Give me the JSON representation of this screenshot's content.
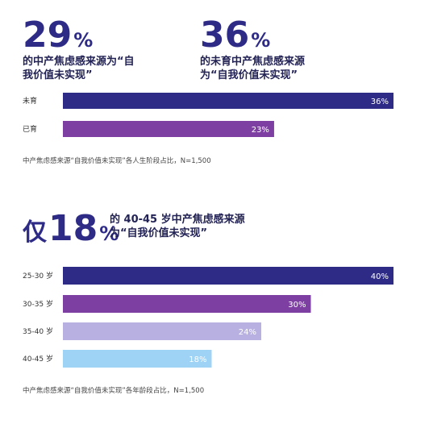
{
  "stat1": {
    "value": "29",
    "unit": "%",
    "caption_lines": [
      "的中产焦虑感来源为“自",
      "我价值未实现”"
    ]
  },
  "stat2": {
    "value": "36",
    "unit": "%",
    "caption_lines": [
      "的未育中产焦虑感来源",
      "为“自我价值未实现”"
    ]
  },
  "stat3": {
    "prefix": "仅",
    "value": "18",
    "unit": "%",
    "caption_lines": [
      "的 40-45 岁中产焦虑感来源",
      "为“自我价值未实现”"
    ]
  },
  "chart_data": [
    {
      "type": "bar",
      "orientation": "horizontal",
      "categories": [
        "未育",
        "已育"
      ],
      "values": [
        36,
        23
      ],
      "value_labels": [
        "36%",
        "23%"
      ],
      "colors": [
        "#2e2b86",
        "#7e3fa3"
      ],
      "xlim": [
        0,
        36
      ],
      "note": "中产焦虑感来源“自我价值未实现”各人生阶段占比，N=1,500"
    },
    {
      "type": "bar",
      "orientation": "horizontal",
      "categories": [
        "25-30 岁",
        "30-35 岁",
        "35-40 岁",
        "40-45 岁"
      ],
      "values": [
        40,
        30,
        24,
        18
      ],
      "value_labels": [
        "40%",
        "30%",
        "24%",
        "18%"
      ],
      "colors": [
        "#2e2b86",
        "#7e3fa3",
        "#b8b0e0",
        "#9fd3f5"
      ],
      "xlim": [
        0,
        40
      ],
      "note": "中产焦虑感来源“自我价值未实现”各年龄段占比，N=1,500"
    }
  ]
}
